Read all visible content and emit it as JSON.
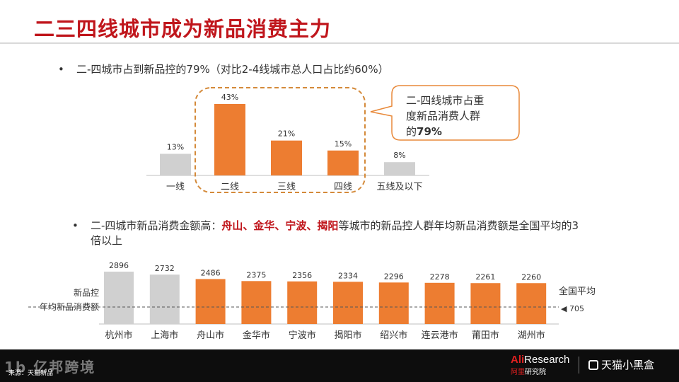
{
  "page": {
    "title": "二三四线城市成为新品消费主力",
    "bullet1": "二-四城市占到新品控的79%（对比2-4线城市总人口占比约60%）",
    "bullet2_prefix": "二-四城市新品消费金额高：",
    "bullet2_highlight": "舟山、金华、宁波、揭阳",
    "bullet2_suffix": "等城市的新品控人群年均新品消费额是全国平均的3倍以上",
    "bullet_symbol": "•",
    "callout_line1": "二-四线城市占重",
    "callout_line2": "度新品消费人群",
    "callout_line3_prefix": "的",
    "callout_line3_bold": "79%",
    "footer": {
      "watermark": "1b 亿邦跨境",
      "source": "来源：天猫新品",
      "alires_prefix": "Ali",
      "alires_suffix": "Research",
      "alires_sub_red": "阿里",
      "alires_sub": "研究院",
      "tmall": "天猫小黑盒"
    }
  },
  "colors": {
    "title": "#c0161c",
    "orange": "#ed7d31",
    "gray": "#d0d0d0",
    "dashed_box": "#d48a3a",
    "callout_border": "#e8893a",
    "highlight": "#c0161c"
  },
  "chart_data": [
    {
      "type": "bar",
      "categories": [
        "一线",
        "二线",
        "三线",
        "四线",
        "五线及以下"
      ],
      "values": [
        13,
        43,
        21,
        15,
        8
      ],
      "value_labels": [
        "13%",
        "43%",
        "21%",
        "15%",
        "8%"
      ],
      "highlight": [
        false,
        true,
        true,
        true,
        false
      ],
      "ylim": [
        0,
        43
      ]
    },
    {
      "type": "bar",
      "categories": [
        "杭州市",
        "上海市",
        "舟山市",
        "金华市",
        "宁波市",
        "揭阳市",
        "绍兴市",
        "连云港市",
        "莆田市",
        "湖州市"
      ],
      "values": [
        2896,
        2732,
        2486,
        2375,
        2356,
        2334,
        2296,
        2278,
        2261,
        2260
      ],
      "highlight": [
        false,
        false,
        true,
        true,
        true,
        true,
        true,
        true,
        true,
        true
      ],
      "ylabel_line1": "新品控",
      "ylabel_line2": "年均新品消费额",
      "reference_line": {
        "label": "全国平均",
        "value": 705,
        "value_text": "◀ 705"
      }
    }
  ]
}
